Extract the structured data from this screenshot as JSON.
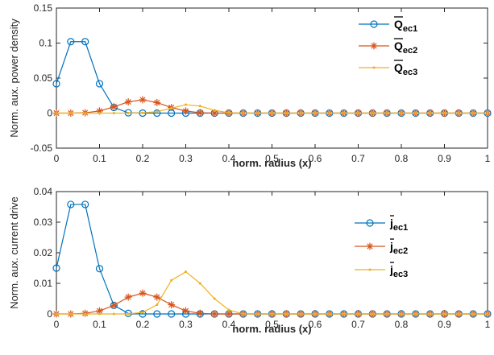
{
  "chart_data": [
    {
      "type": "line",
      "xlabel": "norm. radius (x)",
      "ylabel": "Norm. aux. power density",
      "xlim": [
        0,
        1
      ],
      "ylim": [
        -0.05,
        0.15
      ],
      "xticks": [
        "0",
        "0.1",
        "0.2",
        "0.3",
        "0.4",
        "0.5",
        "0.6",
        "0.7",
        "0.8",
        "0.9",
        "1"
      ],
      "yticks": [
        "-0.05",
        "0",
        "0.05",
        "0.1",
        "0.15"
      ],
      "grid": false,
      "legend_position": "top-right",
      "series": [
        {
          "name": "Q",
          "name_sub": "ec1",
          "color": "#0072BD",
          "marker": "circle",
          "x": [
            0,
            0.0333,
            0.0667,
            0.1,
            0.1333,
            0.1667,
            0.2,
            0.2333,
            0.2667,
            0.3,
            0.3333,
            0.3667,
            0.4,
            0.4333,
            0.4667,
            0.5,
            0.5333,
            0.5667,
            0.6,
            0.6333,
            0.6667,
            0.7,
            0.7333,
            0.7667,
            0.8,
            0.8333,
            0.8667,
            0.9,
            0.9333,
            0.9667,
            1
          ],
          "y": [
            0.042,
            0.102,
            0.102,
            0.042,
            0.008,
            0.0005,
            0,
            0,
            0,
            0,
            0,
            0,
            0,
            0,
            0,
            0,
            0,
            0,
            0,
            0,
            0,
            0,
            0,
            0,
            0,
            0,
            0,
            0,
            0,
            0,
            0
          ]
        },
        {
          "name": "Q",
          "name_sub": "ec2",
          "color": "#D95319",
          "marker": "asterisk",
          "x": [
            0,
            0.0333,
            0.0667,
            0.1,
            0.1333,
            0.1667,
            0.2,
            0.2333,
            0.2667,
            0.3,
            0.3333,
            0.3667,
            0.4,
            0.4333,
            0.4667,
            0.5,
            0.5333,
            0.5667,
            0.6,
            0.6333,
            0.6667,
            0.7,
            0.7333,
            0.7667,
            0.8,
            0.8333,
            0.8667,
            0.9,
            0.9333,
            0.9667,
            1
          ],
          "y": [
            0,
            0,
            0.0005,
            0.003,
            0.009,
            0.016,
            0.019,
            0.015,
            0.008,
            0.003,
            0.0005,
            0,
            0,
            0,
            0,
            0,
            0,
            0,
            0,
            0,
            0,
            0,
            0,
            0,
            0,
            0,
            0,
            0,
            0,
            0,
            0
          ]
        },
        {
          "name": "Q",
          "name_sub": "ec3",
          "color": "#EDB120",
          "marker": "point",
          "x": [
            0,
            0.0333,
            0.0667,
            0.1,
            0.1333,
            0.1667,
            0.2,
            0.2333,
            0.2667,
            0.3,
            0.3333,
            0.3667,
            0.4,
            0.4333,
            0.4667,
            0.5,
            0.5333,
            0.5667,
            0.6,
            0.6333,
            0.6667,
            0.7,
            0.7333,
            0.7667,
            0.8,
            0.8333,
            0.8667,
            0.9,
            0.9333,
            0.9667,
            1
          ],
          "y": [
            0,
            0,
            0,
            0,
            0,
            0,
            0.0005,
            0.002,
            0.007,
            0.012,
            0.01,
            0.004,
            0.0005,
            0,
            0,
            0,
            0,
            0,
            0,
            0,
            0,
            0,
            0,
            0,
            0,
            0,
            0,
            0,
            0,
            0,
            0
          ]
        }
      ]
    },
    {
      "type": "line",
      "xlabel": "norm. radius (x)",
      "ylabel": "Norm. aux. current drive",
      "xlim": [
        0,
        1
      ],
      "ylim": [
        0,
        0.04
      ],
      "xticks": [
        "0",
        "0.1",
        "0.2",
        "0.3",
        "0.4",
        "0.5",
        "0.6",
        "0.7",
        "0.8",
        "0.9",
        "1"
      ],
      "yticks": [
        "0",
        "0.01",
        "0.02",
        "0.03",
        "0.04"
      ],
      "grid": false,
      "legend_position": "right",
      "series": [
        {
          "name": "j",
          "name_sub": "ec1",
          "color": "#0072BD",
          "marker": "circle",
          "x": [
            0,
            0.0333,
            0.0667,
            0.1,
            0.1333,
            0.1667,
            0.2,
            0.2333,
            0.2667,
            0.3,
            0.3333,
            0.3667,
            0.4,
            0.4333,
            0.4667,
            0.5,
            0.5333,
            0.5667,
            0.6,
            0.6333,
            0.6667,
            0.7,
            0.7333,
            0.7667,
            0.8,
            0.8333,
            0.8667,
            0.9,
            0.9333,
            0.9667,
            1
          ],
          "y": [
            0.015,
            0.0358,
            0.0358,
            0.0148,
            0.0028,
            0.0002,
            0,
            0,
            0,
            0,
            0,
            0,
            0,
            0,
            0,
            0,
            0,
            0,
            0,
            0,
            0,
            0,
            0,
            0,
            0,
            0,
            0,
            0,
            0,
            0,
            0
          ]
        },
        {
          "name": "j",
          "name_sub": "ec2",
          "color": "#D95319",
          "marker": "asterisk",
          "x": [
            0,
            0.0333,
            0.0667,
            0.1,
            0.1333,
            0.1667,
            0.2,
            0.2333,
            0.2667,
            0.3,
            0.3333,
            0.3667,
            0.4,
            0.4333,
            0.4667,
            0.5,
            0.5333,
            0.5667,
            0.6,
            0.6333,
            0.6667,
            0.7,
            0.7333,
            0.7667,
            0.8,
            0.8333,
            0.8667,
            0.9,
            0.9333,
            0.9667,
            1
          ],
          "y": [
            0,
            0,
            0.0002,
            0.001,
            0.0028,
            0.0055,
            0.0068,
            0.0055,
            0.003,
            0.001,
            0.0002,
            0,
            0,
            0,
            0,
            0,
            0,
            0,
            0,
            0,
            0,
            0,
            0,
            0,
            0,
            0,
            0,
            0,
            0,
            0,
            0
          ]
        },
        {
          "name": "j",
          "name_sub": "ec3",
          "color": "#EDB120",
          "marker": "point",
          "x": [
            0,
            0.0333,
            0.0667,
            0.1,
            0.1333,
            0.1667,
            0.2,
            0.2333,
            0.2667,
            0.3,
            0.3333,
            0.3667,
            0.4,
            0.4333,
            0.4667,
            0.5,
            0.5333,
            0.5667,
            0.6,
            0.6333,
            0.6667,
            0.7,
            0.7333,
            0.7667,
            0.8,
            0.8333,
            0.8667,
            0.9,
            0.9333,
            0.9667,
            1
          ],
          "y": [
            0,
            0,
            0,
            0,
            0,
            0,
            0.0005,
            0.003,
            0.011,
            0.0138,
            0.01,
            0.005,
            0.0013,
            0,
            0,
            0,
            0,
            0,
            0,
            0,
            0,
            0,
            0,
            0,
            0,
            0,
            0,
            0,
            0,
            0,
            0
          ]
        }
      ]
    }
  ]
}
